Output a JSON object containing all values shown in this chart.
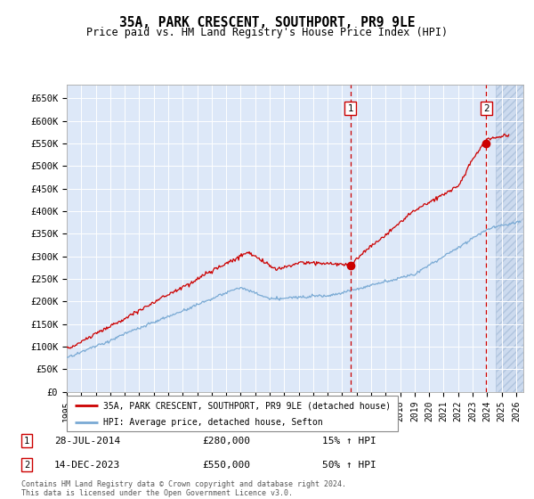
{
  "title": "35A, PARK CRESCENT, SOUTHPORT, PR9 9LE",
  "subtitle": "Price paid vs. HM Land Registry's House Price Index (HPI)",
  "ylabel_ticks": [
    "£0",
    "£50K",
    "£100K",
    "£150K",
    "£200K",
    "£250K",
    "£300K",
    "£350K",
    "£400K",
    "£450K",
    "£500K",
    "£550K",
    "£600K",
    "£650K"
  ],
  "ylim": [
    0,
    680000
  ],
  "xlim_start": 1995.0,
  "xlim_end": 2026.5,
  "hpi_color": "#7aaad4",
  "price_color": "#cc0000",
  "marker1_year": 2014.57,
  "marker1_price": 280000,
  "marker2_year": 2023.95,
  "marker2_price": 550000,
  "legend_label1": "35A, PARK CRESCENT, SOUTHPORT, PR9 9LE (detached house)",
  "legend_label2": "HPI: Average price, detached house, Sefton",
  "note1_date": "28-JUL-2014",
  "note1_price": "£280,000",
  "note1_hpi": "15% ↑ HPI",
  "note2_date": "14-DEC-2023",
  "note2_price": "£550,000",
  "note2_hpi": "50% ↑ HPI",
  "footer": "Contains HM Land Registry data © Crown copyright and database right 2024.\nThis data is licensed under the Open Government Licence v3.0.",
  "bg_color": "#dde8f8",
  "hatch_bg_color": "#ccdaee",
  "hatch_start": 2024.58
}
